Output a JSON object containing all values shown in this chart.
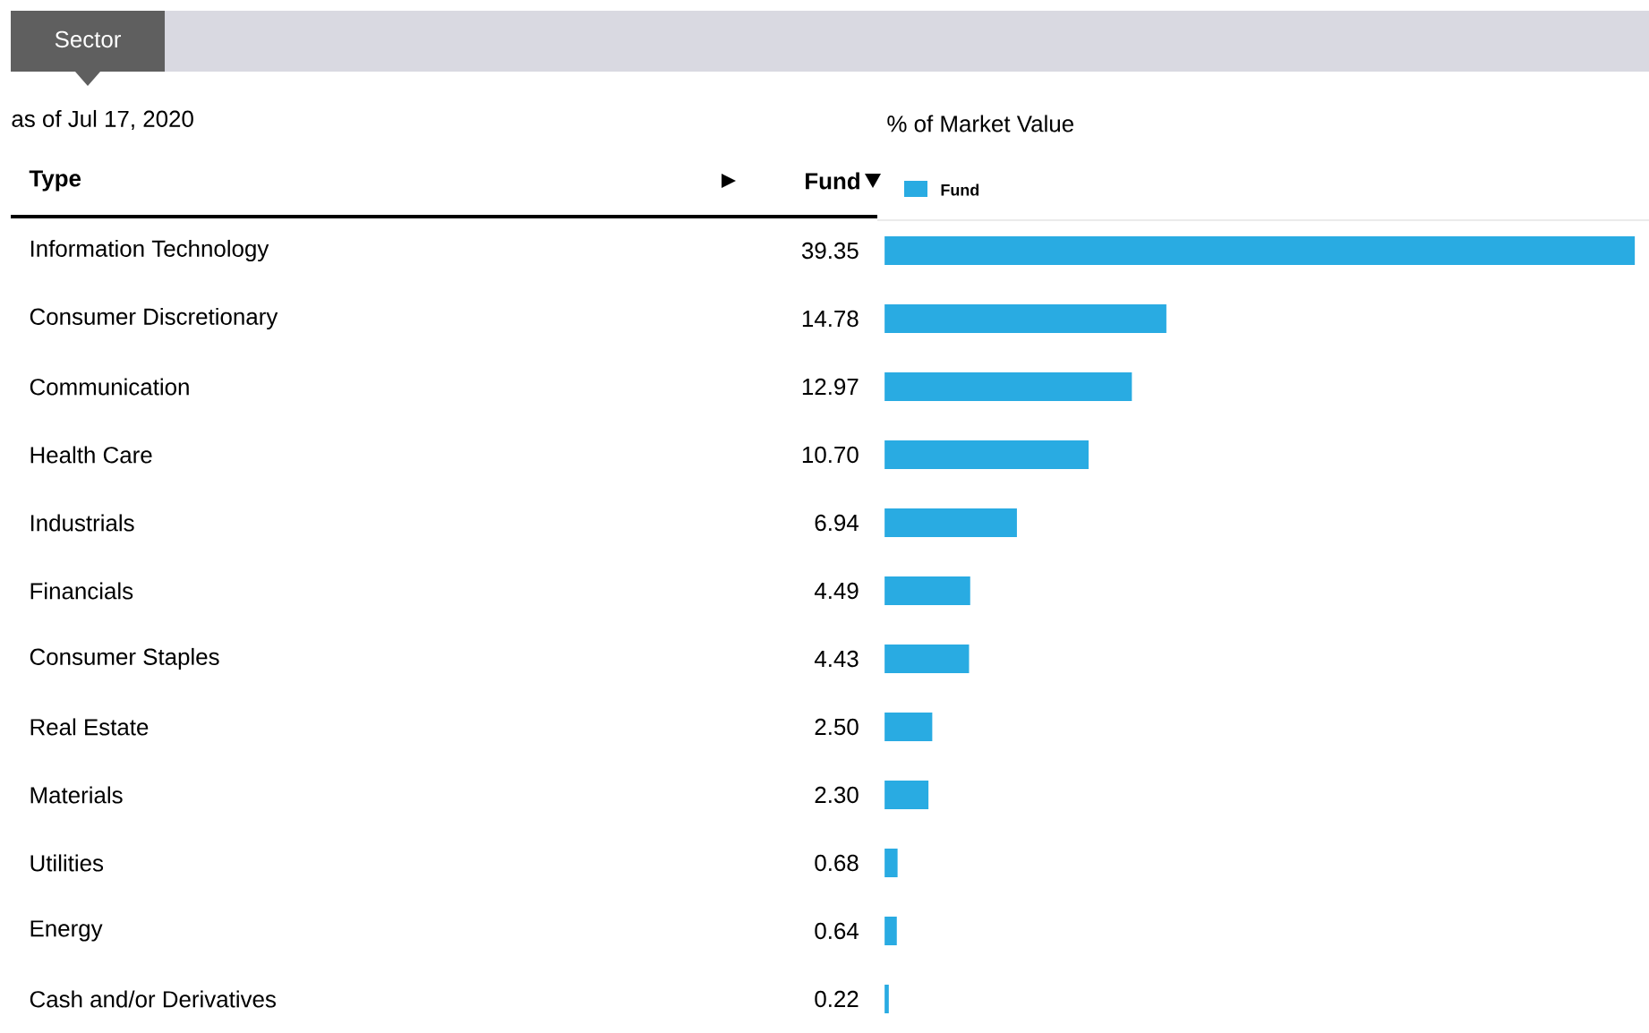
{
  "chart_data": {
    "type": "bar",
    "orientation": "horizontal",
    "title": "Sector",
    "subtitle": "as of Jul 17, 2020",
    "xlabel": "% of Market Value",
    "annotations": [
      "Type",
      "Fund"
    ],
    "categories": [
      "Information Technology",
      "Consumer Discretionary",
      "Communication",
      "Health Care",
      "Industrials",
      "Financials",
      "Consumer Staples",
      "Real Estate",
      "Materials",
      "Utilities",
      "Energy",
      "Cash and/or Derivatives"
    ],
    "series": [
      {
        "name": "Fund",
        "color": "#29abe2",
        "values": [
          39.35,
          14.78,
          12.97,
          10.7,
          6.94,
          4.49,
          4.43,
          2.5,
          2.3,
          0.68,
          0.64,
          0.22
        ],
        "value_labels": [
          "39.35",
          "14.78",
          "12.97",
          "10.70",
          "6.94",
          "4.49",
          "4.43",
          "2.50",
          "2.30",
          "0.68",
          "0.64",
          "0.22"
        ]
      }
    ],
    "legend": "top left"
  }
}
